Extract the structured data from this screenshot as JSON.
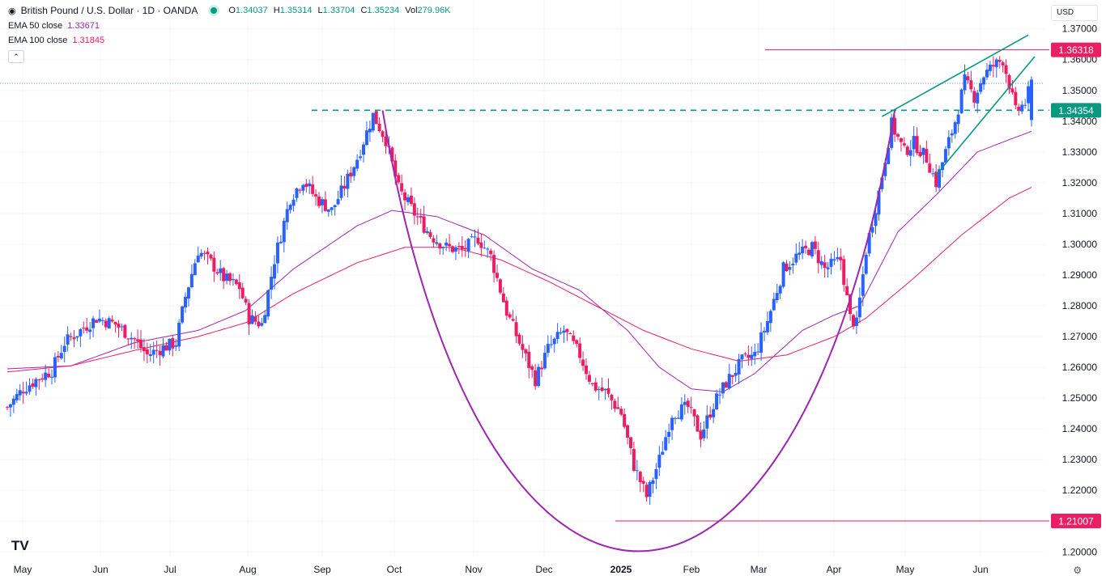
{
  "header": {
    "symbol": "British Pound / U.S. Dollar · 1D · OANDA",
    "o_label": "O",
    "o": "1.34037",
    "h_label": "H",
    "h": "1.35314",
    "l_label": "L",
    "l": "1.33704",
    "c_label": "C",
    "c": "1.35234",
    "vol_label": "Vol",
    "vol": "279.96K"
  },
  "indicators": [
    {
      "label": "EMA 50 close",
      "value": "1.33671",
      "color": "#9c27b0"
    },
    {
      "label": "EMA 100 close",
      "value": "1.31845",
      "color": "#e91e63"
    }
  ],
  "currency_button": "USD",
  "icons": {
    "collapse": "chevron-up-icon",
    "logo": "tradingview-logo-icon",
    "settings": "gear-icon"
  },
  "colors": {
    "up": "#2962ff",
    "down": "#e91e63",
    "accent": "#089981",
    "ema50": "#9c27b0",
    "ema100": "#e91e63"
  },
  "chart_data": {
    "type": "candlestick",
    "y_axis_ticks": [
      "1.37000",
      "1.36000",
      "1.35000",
      "1.34000",
      "1.33000",
      "1.32000",
      "1.31000",
      "1.30000",
      "1.29000",
      "1.28000",
      "1.27000",
      "1.26000",
      "1.25000",
      "1.24000",
      "1.23000",
      "1.22000",
      "1.21000",
      "1.20000"
    ],
    "x_axis_labels": [
      "May",
      "Jun",
      "Jul",
      "Aug",
      "Sep",
      "Oct",
      "Nov",
      "Dec",
      "2025",
      "Feb",
      "Mar",
      "Apr",
      "May",
      "Jun"
    ],
    "ylim": [
      1.1985,
      1.3715
    ],
    "price_labels": [
      {
        "value": "1.36318",
        "color": "#e91e63"
      },
      {
        "value": "1.34354",
        "color": "#089981"
      },
      {
        "value": "1.21007",
        "color": "#e91e63"
      }
    ],
    "horizontal_levels": [
      {
        "price": 1.36318,
        "from_month": "Apr",
        "style": "solid",
        "color": "#e91e63"
      },
      {
        "price": 1.34354,
        "from_month": "Sep",
        "style": "dashed",
        "color": "#089981"
      },
      {
        "price": 1.21007,
        "from_month": "Jan",
        "style": "solid",
        "color": "#e91e63"
      }
    ],
    "rounding_bottom": {
      "rim_price": 1.3435,
      "low_price": 1.209
    },
    "rising_wedge": {
      "upper": [
        1.3415,
        1.368
      ],
      "lower": [
        1.3225,
        1.361
      ]
    },
    "series": [
      {
        "name": "EMA 50 close",
        "last": 1.33671
      },
      {
        "name": "EMA 100 close",
        "last": 1.31845
      }
    ],
    "close_path": [
      [
        0,
        1.247
      ],
      [
        5,
        1.253
      ],
      [
        9,
        1.256
      ],
      [
        14,
        1.259
      ],
      [
        18,
        1.268
      ],
      [
        23,
        1.272
      ],
      [
        28,
        1.276
      ],
      [
        34,
        1.274
      ],
      [
        40,
        1.269
      ],
      [
        44,
        1.264
      ],
      [
        48,
        1.266
      ],
      [
        53,
        1.268
      ],
      [
        56,
        1.283
      ],
      [
        60,
        1.298
      ],
      [
        64,
        1.294
      ],
      [
        68,
        1.289
      ],
      [
        73,
        1.286
      ],
      [
        76,
        1.276
      ],
      [
        80,
        1.274
      ],
      [
        84,
        1.295
      ],
      [
        89,
        1.315
      ],
      [
        93,
        1.321
      ],
      [
        97,
        1.315
      ],
      [
        102,
        1.311
      ],
      [
        106,
        1.319
      ],
      [
        110,
        1.328
      ],
      [
        115,
        1.342
      ],
      [
        119,
        1.334
      ],
      [
        123,
        1.318
      ],
      [
        128,
        1.31
      ],
      [
        133,
        1.303
      ],
      [
        138,
        1.299
      ],
      [
        143,
        1.298
      ],
      [
        148,
        1.302
      ],
      [
        152,
        1.296
      ],
      [
        157,
        1.278
      ],
      [
        161,
        1.268
      ],
      [
        166,
        1.256
      ],
      [
        170,
        1.266
      ],
      [
        175,
        1.272
      ],
      [
        180,
        1.264
      ],
      [
        184,
        1.254
      ],
      [
        188,
        1.252
      ],
      [
        193,
        1.245
      ],
      [
        197,
        1.228
      ],
      [
        201,
        1.218
      ],
      [
        205,
        1.23
      ],
      [
        209,
        1.245
      ],
      [
        214,
        1.247
      ],
      [
        218,
        1.238
      ],
      [
        222,
        1.248
      ],
      [
        226,
        1.255
      ],
      [
        231,
        1.262
      ],
      [
        235,
        1.264
      ],
      [
        239,
        1.275
      ],
      [
        244,
        1.292
      ],
      [
        248,
        1.296
      ],
      [
        253,
        1.299
      ],
      [
        257,
        1.292
      ],
      [
        262,
        1.295
      ],
      [
        265,
        1.276
      ],
      [
        267,
        1.274
      ],
      [
        270,
        1.298
      ],
      [
        274,
        1.317
      ],
      [
        278,
        1.339
      ],
      [
        282,
        1.33
      ],
      [
        285,
        1.333
      ],
      [
        289,
        1.328
      ],
      [
        292,
        1.32
      ],
      [
        295,
        1.33
      ],
      [
        298,
        1.34
      ],
      [
        301,
        1.353
      ],
      [
        304,
        1.348
      ],
      [
        307,
        1.355
      ],
      [
        310,
        1.358
      ],
      [
        313,
        1.36
      ],
      [
        315,
        1.352
      ],
      [
        317,
        1.343
      ],
      [
        320,
        1.346
      ],
      [
        322,
        1.3523
      ]
    ],
    "ema50_path": [
      [
        0,
        1.2595
      ],
      [
        20,
        1.2605
      ],
      [
        40,
        1.268
      ],
      [
        60,
        1.272
      ],
      [
        75,
        1.2785
      ],
      [
        90,
        1.292
      ],
      [
        110,
        1.306
      ],
      [
        121,
        1.311
      ],
      [
        135,
        1.309
      ],
      [
        150,
        1.303
      ],
      [
        165,
        1.292
      ],
      [
        180,
        1.285
      ],
      [
        195,
        1.272
      ],
      [
        205,
        1.26
      ],
      [
        215,
        1.253
      ],
      [
        225,
        1.252
      ],
      [
        235,
        1.258
      ],
      [
        250,
        1.272
      ],
      [
        260,
        1.277
      ],
      [
        268,
        1.28
      ],
      [
        280,
        1.304
      ],
      [
        292,
        1.316
      ],
      [
        305,
        1.33
      ],
      [
        315,
        1.334
      ],
      [
        322,
        1.3367
      ]
    ],
    "ema100_path": [
      [
        0,
        1.2585
      ],
      [
        20,
        1.2605
      ],
      [
        40,
        1.2655
      ],
      [
        60,
        1.27
      ],
      [
        75,
        1.2745
      ],
      [
        90,
        1.284
      ],
      [
        110,
        1.294
      ],
      [
        125,
        1.299
      ],
      [
        140,
        1.299
      ],
      [
        155,
        1.295
      ],
      [
        170,
        1.288
      ],
      [
        185,
        1.28
      ],
      [
        200,
        1.272
      ],
      [
        215,
        1.266
      ],
      [
        230,
        1.262
      ],
      [
        245,
        1.264
      ],
      [
        260,
        1.27
      ],
      [
        270,
        1.276
      ],
      [
        285,
        1.289
      ],
      [
        300,
        1.303
      ],
      [
        315,
        1.315
      ],
      [
        322,
        1.3185
      ]
    ]
  }
}
